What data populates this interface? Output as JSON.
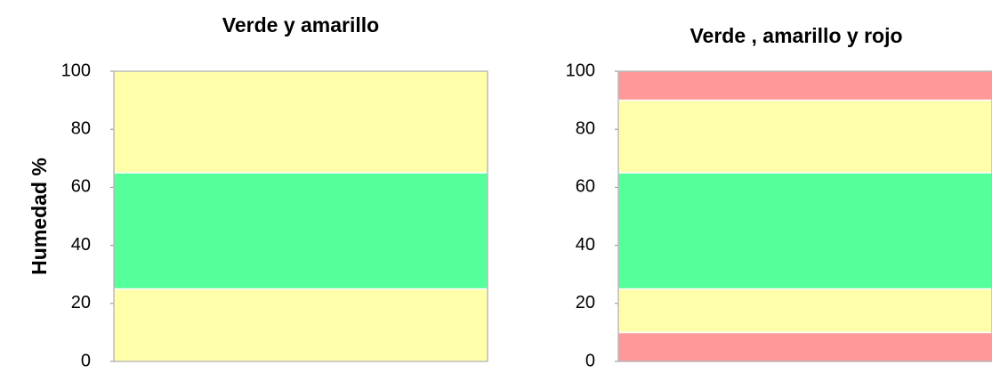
{
  "chart_data": [
    {
      "type": "bar",
      "stacked": true,
      "title": "Verde y amarillo",
      "y_label": "Humedad %",
      "series": [
        {
          "color": "#ffffaa",
          "values": [
            25
          ]
        },
        {
          "color": "#55ff99",
          "values": [
            40
          ]
        },
        {
          "color": "#ffffaa",
          "values": [
            35
          ]
        }
      ],
      "ylim": [
        0,
        100
      ],
      "yticks": [
        0,
        20,
        40,
        60,
        80,
        100
      ]
    },
    {
      "type": "bar",
      "stacked": true,
      "title": "Verde , amarillo y rojo",
      "series": [
        {
          "color": "#ff9999",
          "values": [
            10
          ]
        },
        {
          "color": "#ffffaa",
          "values": [
            15
          ]
        },
        {
          "color": "#55ff99",
          "values": [
            40
          ]
        },
        {
          "color": "#ffffaa",
          "values": [
            25
          ]
        },
        {
          "color": "#ff9999",
          "values": [
            10
          ]
        }
      ],
      "ylim": [
        0,
        100
      ],
      "yticks": [
        0,
        20,
        40,
        60,
        80,
        100
      ]
    }
  ]
}
